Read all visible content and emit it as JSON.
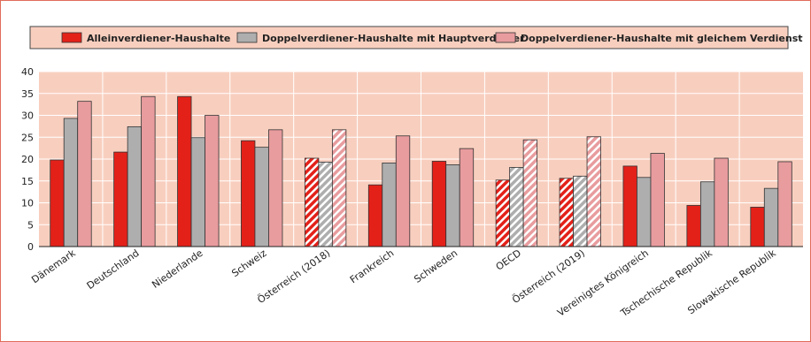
{
  "chart_data": {
    "type": "bar",
    "categories": [
      "Dänemark",
      "Deutschland",
      "Niederlande",
      "Schweiz",
      "Österreich (2018)",
      "Frankreich",
      "Schweden",
      "OECD",
      "Österreich (2019)",
      "Vereinigtes Königreich",
      "Tschechische Republik",
      "Slowakische Republik"
    ],
    "series": [
      {
        "name": "Alleinverdiener-Haushalte",
        "values": [
          19.8,
          21.6,
          34.3,
          24.2,
          20.2,
          14.1,
          19.5,
          15.2,
          15.6,
          18.4,
          9.4,
          9.0
        ]
      },
      {
        "name": "Doppelverdiener-Haushalte mit Hauptverdiener",
        "values": [
          29.3,
          27.4,
          24.9,
          22.7,
          19.3,
          19.1,
          18.7,
          18.1,
          16.1,
          15.8,
          14.8,
          13.3
        ]
      },
      {
        "name": "Doppelverdiener-Haushalte mit gleichem Verdienst",
        "values": [
          33.2,
          34.3,
          30.0,
          26.7,
          26.7,
          25.3,
          22.4,
          24.4,
          25.1,
          21.3,
          20.2,
          19.4
        ]
      }
    ],
    "hatched_categories": [
      "Österreich (2018)",
      "OECD",
      "Österreich (2019)"
    ],
    "ylim": [
      0,
      40
    ],
    "yticks": [
      0,
      5,
      10,
      15,
      20,
      25,
      30,
      35,
      40
    ],
    "grid": true,
    "legend_position": "top",
    "colors": {
      "series": [
        "#e32119",
        "#aeaeae",
        "#e89c9e"
      ],
      "plot_background": "#f8cfbf",
      "legend_background": "#f8cfbf",
      "frame": "#e06b5a",
      "grid": "#ffffff"
    }
  }
}
